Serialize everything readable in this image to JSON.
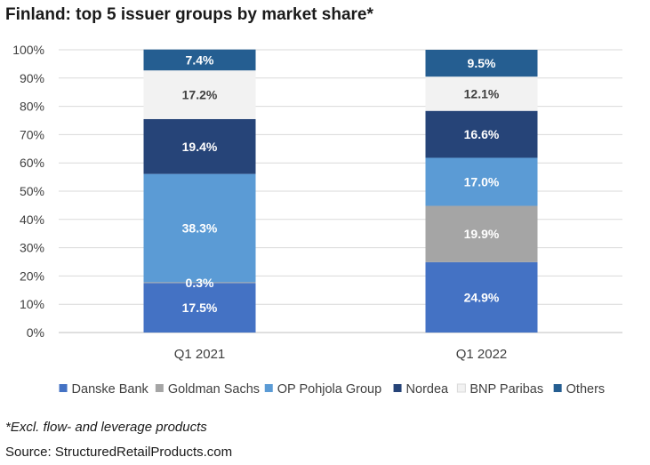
{
  "chart_data": {
    "type": "bar",
    "stacked": true,
    "title": "Finland: top 5 issuer groups by market share*",
    "categories": [
      "Q1 2021",
      "Q1 2022"
    ],
    "ylim": [
      0,
      100
    ],
    "yticks": [
      0,
      10,
      20,
      30,
      40,
      50,
      60,
      70,
      80,
      90,
      100
    ],
    "ytick_labels": [
      "0%",
      "10%",
      "20%",
      "30%",
      "40%",
      "50%",
      "60%",
      "70%",
      "80%",
      "90%",
      "100%"
    ],
    "grid": true,
    "legend_position": "bottom",
    "series": [
      {
        "name": "Danske Bank",
        "color": "#4472C4",
        "label_color": "#ffffff",
        "values": [
          17.5,
          24.9
        ],
        "labels": [
          "17.5%",
          "24.9%"
        ]
      },
      {
        "name": "Goldman Sachs",
        "color": "#A5A5A5",
        "label_color": "#ffffff",
        "values": [
          0.3,
          19.9
        ],
        "labels": [
          "0.3%",
          "19.9%"
        ]
      },
      {
        "name": "OP Pohjola Group",
        "color": "#5B9BD5",
        "label_color": "#ffffff",
        "values": [
          38.3,
          17.0
        ],
        "labels": [
          "38.3%",
          "17.0%"
        ]
      },
      {
        "name": "Nordea",
        "color": "#264478",
        "label_color": "#ffffff",
        "values": [
          19.4,
          16.6
        ],
        "labels": [
          "19.4%",
          "16.6%"
        ]
      },
      {
        "name": "BNP Paribas",
        "color": "#F2F2F2",
        "label_color": "#404040",
        "values": [
          17.2,
          12.1
        ],
        "labels": [
          "17.2%",
          "12.1%"
        ]
      },
      {
        "name": "Others",
        "color": "#255E91",
        "label_color": "#ffffff",
        "values": [
          7.4,
          9.5
        ],
        "labels": [
          "7.4%",
          "9.5%"
        ]
      }
    ],
    "footnote": "*Excl. flow- and leverage products",
    "source": "Source: StructuredRetailProducts.com"
  }
}
